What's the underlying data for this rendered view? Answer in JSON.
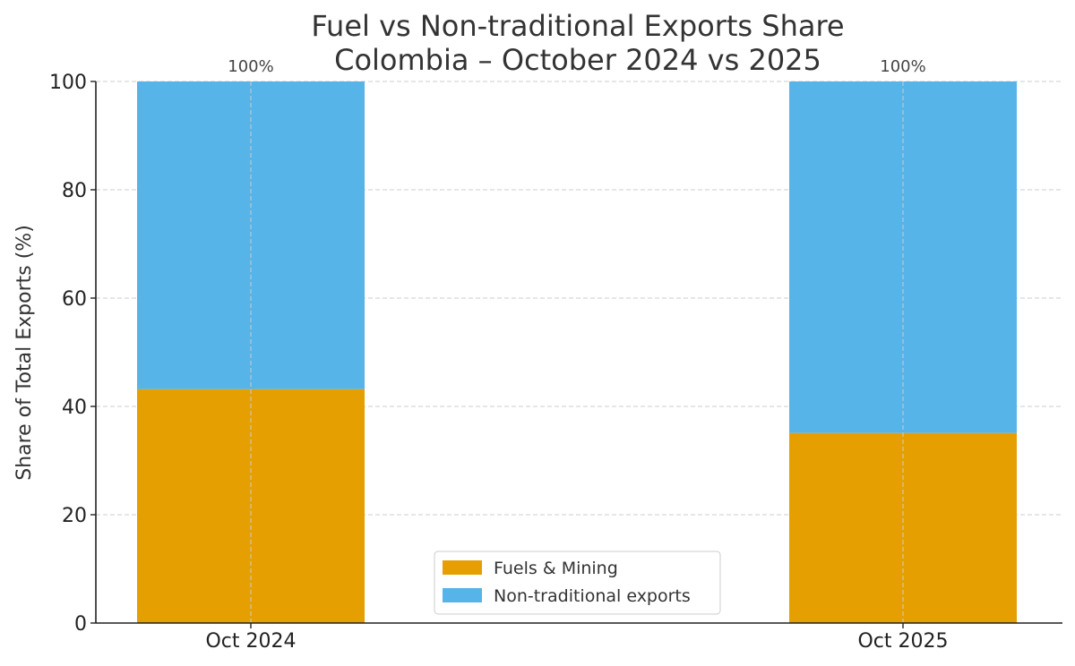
{
  "chart_data": {
    "type": "bar",
    "stacked": true,
    "title": "Fuel vs Non-traditional Exports Share",
    "subtitle": "Colombia – October 2024 vs 2025",
    "xlabel": "",
    "ylabel": "Share of Total Exports (%)",
    "ylim": [
      0,
      100
    ],
    "yticks": [
      0,
      20,
      40,
      60,
      80,
      100
    ],
    "grid": true,
    "categories": [
      "Oct 2024",
      "Oct 2025"
    ],
    "series": [
      {
        "name": "Fuels & Mining",
        "color": "#E69F00",
        "values": [
          43.2,
          35.1
        ]
      },
      {
        "name": "Non-traditional exports",
        "color": "#56B4E9",
        "values": [
          56.8,
          64.9
        ]
      }
    ],
    "data_labels": [
      "100%",
      "100%"
    ],
    "legend_position": "lower-center"
  }
}
